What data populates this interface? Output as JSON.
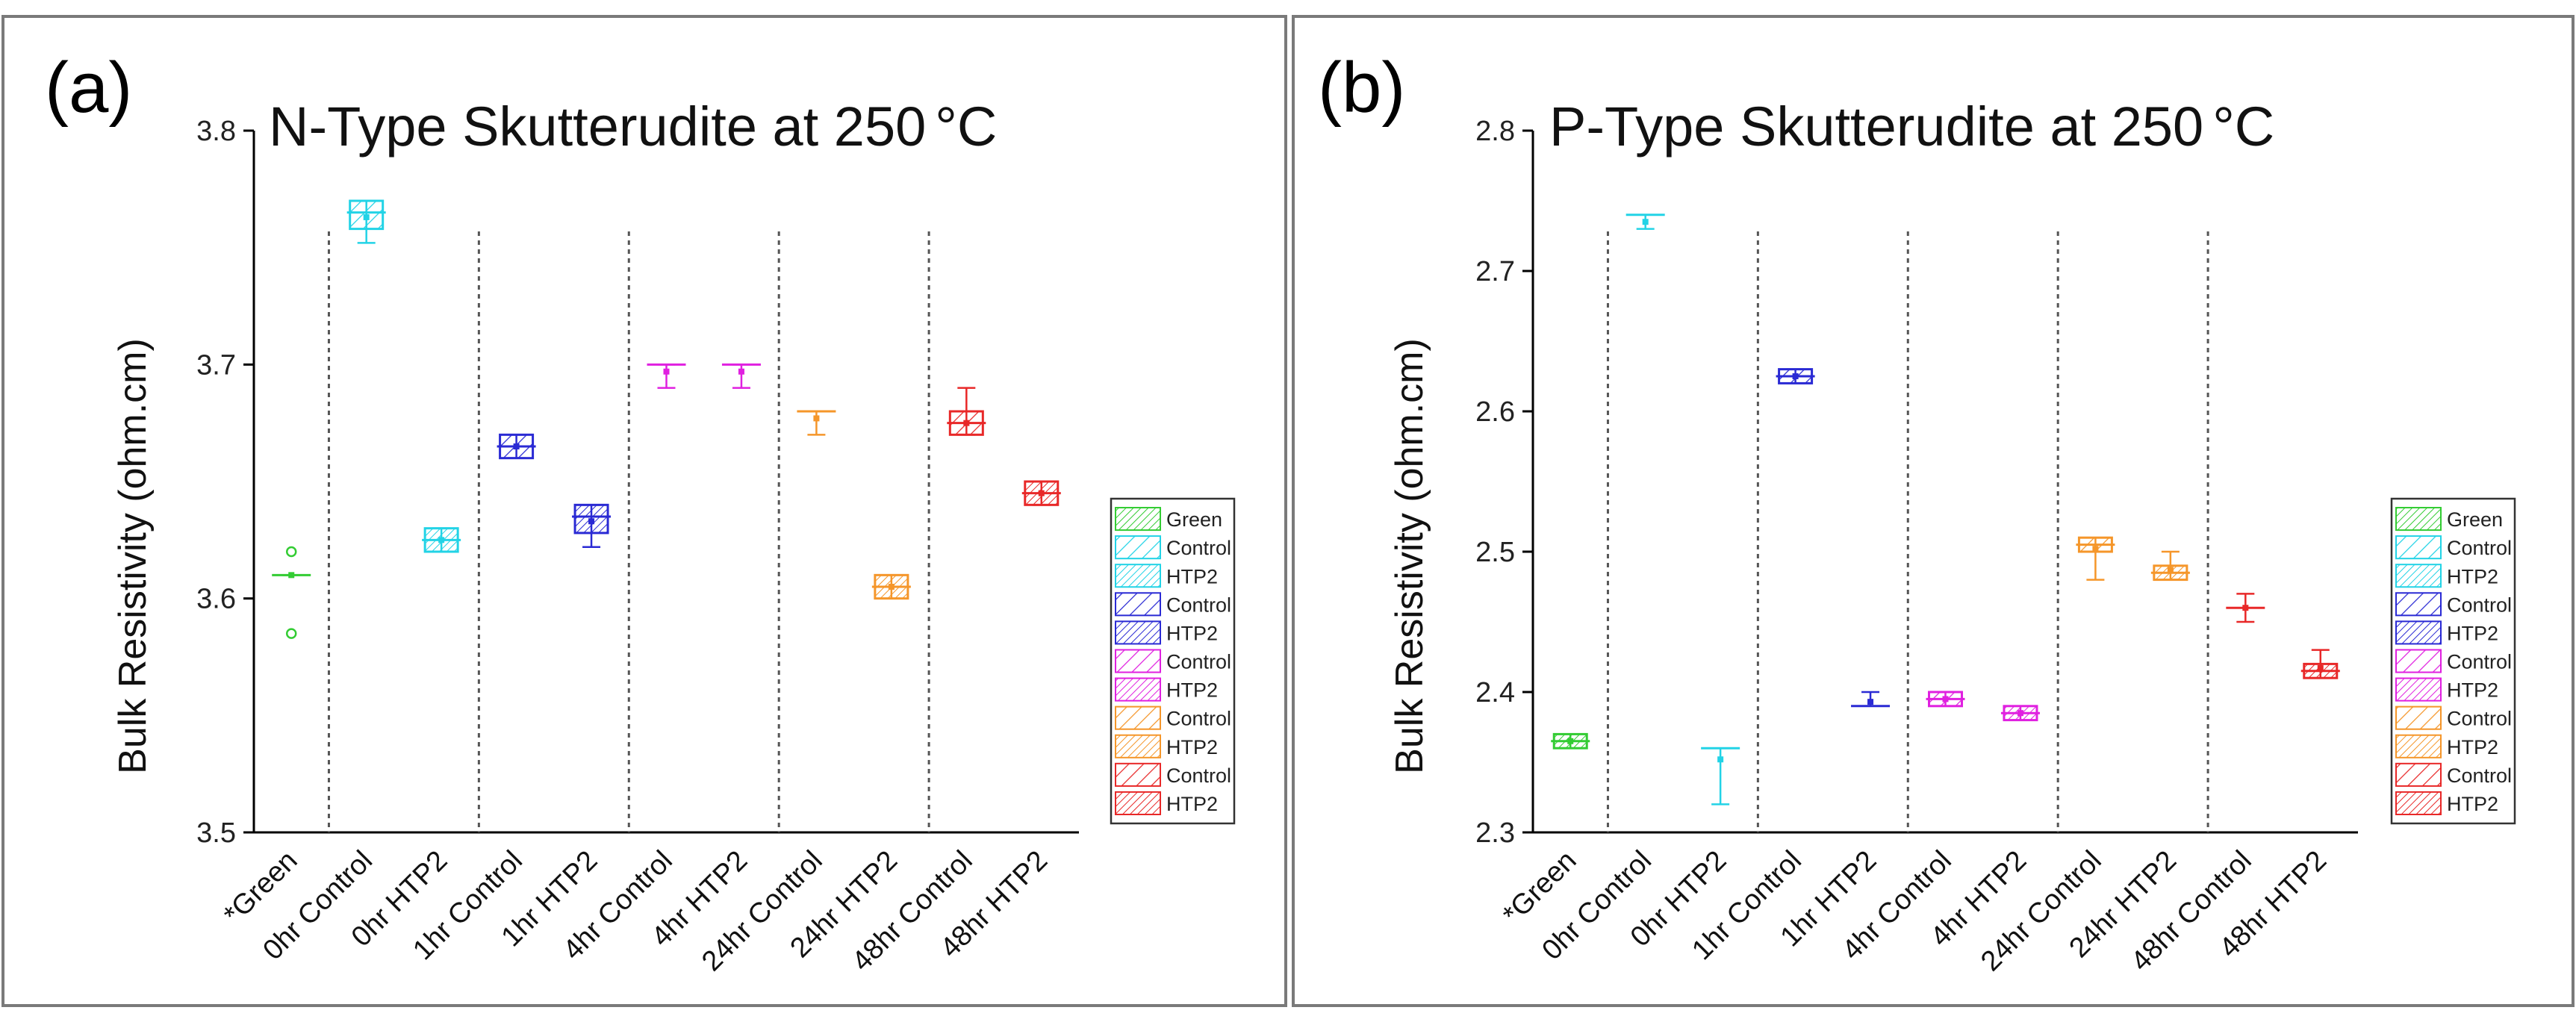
{
  "chart_data": [
    {
      "panel_label": "(a)",
      "type": "box",
      "title": "N-Type Skutterudite at 250",
      "title_unit": "°C",
      "ylabel": "Bulk Resistivity (ohm.cm)",
      "ylim": [
        3.5,
        3.8
      ],
      "yticks": [
        "3.5",
        "3.6",
        "3.7",
        "3.8"
      ],
      "categories": [
        "*Green",
        "0hr Control",
        "0hr HTP2",
        "1hr Control",
        "1hr HTP2",
        "4hr Control",
        "4hr HTP2",
        "24hr Control",
        "24hr HTP2",
        "48hr Control",
        "48hr HTP2"
      ],
      "groups_after_index": [
        0,
        2,
        4,
        6,
        8
      ],
      "boxes": [
        {
          "category": "*Green",
          "q1": 3.61,
          "median": 3.61,
          "q3": 3.61,
          "mean": 3.61,
          "whisker_low": 3.61,
          "whisker_high": 3.61,
          "outliers": [
            3.62,
            3.585
          ],
          "color": "#33cc33",
          "pattern": "dense"
        },
        {
          "category": "0hr Control",
          "q1": 3.758,
          "median": 3.765,
          "q3": 3.77,
          "mean": 3.763,
          "whisker_low": 3.752,
          "whisker_high": 3.77,
          "outliers": [],
          "color": "#22d3e6",
          "pattern": "sparse"
        },
        {
          "category": "0hr HTP2",
          "q1": 3.62,
          "median": 3.625,
          "q3": 3.63,
          "mean": 3.625,
          "whisker_low": 3.62,
          "whisker_high": 3.63,
          "outliers": [],
          "color": "#22d3e6",
          "pattern": "dense"
        },
        {
          "category": "1hr Control",
          "q1": 3.66,
          "median": 3.665,
          "q3": 3.67,
          "mean": 3.665,
          "whisker_low": 3.66,
          "whisker_high": 3.67,
          "outliers": [],
          "color": "#2a2ad4",
          "pattern": "sparse"
        },
        {
          "category": "1hr HTP2",
          "q1": 3.628,
          "median": 3.635,
          "q3": 3.64,
          "mean": 3.633,
          "whisker_low": 3.622,
          "whisker_high": 3.64,
          "outliers": [],
          "color": "#2a2ad4",
          "pattern": "dense"
        },
        {
          "category": "4hr Control",
          "q1": 3.7,
          "median": 3.7,
          "q3": 3.7,
          "mean": 3.697,
          "whisker_low": 3.69,
          "whisker_high": 3.7,
          "outliers": [],
          "color": "#e020e0",
          "pattern": "sparse"
        },
        {
          "category": "4hr HTP2",
          "q1": 3.7,
          "median": 3.7,
          "q3": 3.7,
          "mean": 3.697,
          "whisker_low": 3.69,
          "whisker_high": 3.7,
          "outliers": [],
          "color": "#e020e0",
          "pattern": "dense"
        },
        {
          "category": "24hr Control",
          "q1": 3.68,
          "median": 3.68,
          "q3": 3.68,
          "mean": 3.677,
          "whisker_low": 3.67,
          "whisker_high": 3.68,
          "outliers": [],
          "color": "#f5962a",
          "pattern": "sparse"
        },
        {
          "category": "24hr HTP2",
          "q1": 3.6,
          "median": 3.605,
          "q3": 3.61,
          "mean": 3.605,
          "whisker_low": 3.6,
          "whisker_high": 3.61,
          "outliers": [],
          "color": "#f5962a",
          "pattern": "dense"
        },
        {
          "category": "48hr Control",
          "q1": 3.67,
          "median": 3.675,
          "q3": 3.68,
          "mean": 3.675,
          "whisker_low": 3.67,
          "whisker_high": 3.69,
          "outliers": [],
          "color": "#e82828",
          "pattern": "sparse"
        },
        {
          "category": "48hr HTP2",
          "q1": 3.64,
          "median": 3.645,
          "q3": 3.65,
          "mean": 3.645,
          "whisker_low": 3.64,
          "whisker_high": 3.65,
          "outliers": [],
          "color": "#e82828",
          "pattern": "dense"
        }
      ],
      "legend": [
        {
          "label": "Green",
          "color": "#33cc33",
          "pattern": "dense"
        },
        {
          "label": "Control",
          "color": "#22d3e6",
          "pattern": "sparse"
        },
        {
          "label": "HTP2",
          "color": "#22d3e6",
          "pattern": "dense"
        },
        {
          "label": "Control",
          "color": "#2a2ad4",
          "pattern": "sparse"
        },
        {
          "label": "HTP2",
          "color": "#2a2ad4",
          "pattern": "dense"
        },
        {
          "label": "Control",
          "color": "#e020e0",
          "pattern": "sparse"
        },
        {
          "label": "HTP2",
          "color": "#e020e0",
          "pattern": "dense"
        },
        {
          "label": "Control",
          "color": "#f5962a",
          "pattern": "sparse"
        },
        {
          "label": "HTP2",
          "color": "#f5962a",
          "pattern": "dense"
        },
        {
          "label": "Control",
          "color": "#e82828",
          "pattern": "sparse"
        },
        {
          "label": "HTP2",
          "color": "#e82828",
          "pattern": "dense"
        }
      ],
      "legend_position": "right"
    },
    {
      "panel_label": "(b)",
      "type": "box",
      "title": "P-Type Skutterudite at 250",
      "title_unit": "°C",
      "ylabel": "Bulk Resistivity (ohm.cm)",
      "ylim": [
        2.3,
        2.8
      ],
      "yticks": [
        "2.3",
        "2.4",
        "2.5",
        "2.6",
        "2.7",
        "2.8"
      ],
      "categories": [
        "*Green",
        "0hr Control",
        "0hr HTP2",
        "1hr Control",
        "1hr HTP2",
        "4hr Control",
        "4hr HTP2",
        "24hr Control",
        "24hr HTP2",
        "48hr Control",
        "48hr HTP2"
      ],
      "groups_after_index": [
        0,
        2,
        4,
        6,
        8
      ],
      "boxes": [
        {
          "category": "*Green",
          "q1": 2.36,
          "median": 2.365,
          "q3": 2.37,
          "mean": 2.365,
          "whisker_low": 2.36,
          "whisker_high": 2.37,
          "outliers": [],
          "color": "#33cc33",
          "pattern": "dense"
        },
        {
          "category": "0hr Control",
          "q1": 2.74,
          "median": 2.74,
          "q3": 2.74,
          "mean": 2.735,
          "whisker_low": 2.73,
          "whisker_high": 2.74,
          "outliers": [],
          "color": "#22d3e6",
          "pattern": "sparse"
        },
        {
          "category": "0hr HTP2",
          "q1": 2.36,
          "median": 2.36,
          "q3": 2.36,
          "mean": 2.352,
          "whisker_low": 2.32,
          "whisker_high": 2.36,
          "outliers": [],
          "color": "#22d3e6",
          "pattern": "dense"
        },
        {
          "category": "1hr Control",
          "q1": 2.62,
          "median": 2.625,
          "q3": 2.63,
          "mean": 2.625,
          "whisker_low": 2.62,
          "whisker_high": 2.63,
          "outliers": [],
          "color": "#2a2ad4",
          "pattern": "sparse"
        },
        {
          "category": "1hr HTP2",
          "q1": 2.39,
          "median": 2.39,
          "q3": 2.39,
          "mean": 2.393,
          "whisker_low": 2.39,
          "whisker_high": 2.4,
          "outliers": [],
          "color": "#2a2ad4",
          "pattern": "dense"
        },
        {
          "category": "4hr Control",
          "q1": 2.39,
          "median": 2.395,
          "q3": 2.4,
          "mean": 2.395,
          "whisker_low": 2.39,
          "whisker_high": 2.4,
          "outliers": [],
          "color": "#e020e0",
          "pattern": "sparse"
        },
        {
          "category": "4hr HTP2",
          "q1": 2.38,
          "median": 2.385,
          "q3": 2.39,
          "mean": 2.385,
          "whisker_low": 2.38,
          "whisker_high": 2.39,
          "outliers": [],
          "color": "#e020e0",
          "pattern": "dense"
        },
        {
          "category": "24hr Control",
          "q1": 2.5,
          "median": 2.505,
          "q3": 2.51,
          "mean": 2.502,
          "whisker_low": 2.48,
          "whisker_high": 2.51,
          "outliers": [],
          "color": "#f5962a",
          "pattern": "sparse"
        },
        {
          "category": "24hr HTP2",
          "q1": 2.48,
          "median": 2.485,
          "q3": 2.49,
          "mean": 2.487,
          "whisker_low": 2.48,
          "whisker_high": 2.5,
          "outliers": [],
          "color": "#f5962a",
          "pattern": "dense"
        },
        {
          "category": "48hr Control",
          "q1": 2.46,
          "median": 2.46,
          "q3": 2.46,
          "mean": 2.46,
          "whisker_low": 2.45,
          "whisker_high": 2.47,
          "outliers": [],
          "color": "#e82828",
          "pattern": "sparse"
        },
        {
          "category": "48hr HTP2",
          "q1": 2.41,
          "median": 2.415,
          "q3": 2.42,
          "mean": 2.417,
          "whisker_low": 2.41,
          "whisker_high": 2.43,
          "outliers": [],
          "color": "#e82828",
          "pattern": "dense"
        }
      ],
      "legend": [
        {
          "label": "Green",
          "color": "#33cc33",
          "pattern": "dense"
        },
        {
          "label": "Control",
          "color": "#22d3e6",
          "pattern": "sparse"
        },
        {
          "label": "HTP2",
          "color": "#22d3e6",
          "pattern": "dense"
        },
        {
          "label": "Control",
          "color": "#2a2ad4",
          "pattern": "sparse"
        },
        {
          "label": "HTP2",
          "color": "#2a2ad4",
          "pattern": "dense"
        },
        {
          "label": "Control",
          "color": "#e020e0",
          "pattern": "sparse"
        },
        {
          "label": "HTP2",
          "color": "#e020e0",
          "pattern": "dense"
        },
        {
          "label": "Control",
          "color": "#f5962a",
          "pattern": "sparse"
        },
        {
          "label": "HTP2",
          "color": "#f5962a",
          "pattern": "dense"
        },
        {
          "label": "Control",
          "color": "#e82828",
          "pattern": "sparse"
        },
        {
          "label": "HTP2",
          "color": "#e82828",
          "pattern": "dense"
        }
      ],
      "legend_position": "right"
    }
  ]
}
